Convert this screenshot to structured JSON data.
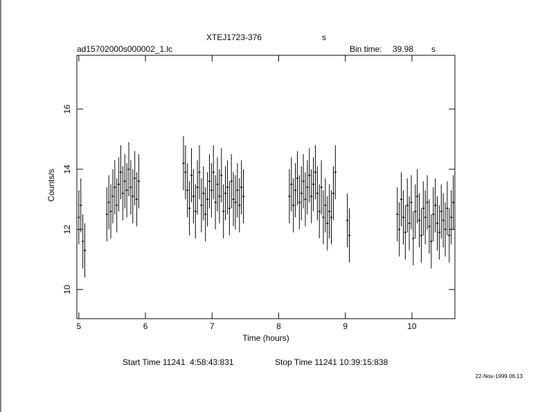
{
  "chart_data": {
    "type": "errorbar",
    "title": "XTEJ1723-376",
    "title_unit": "s",
    "filename": "ad15702000s000002_1.lc",
    "bin_label": "Bin time:",
    "bin_value": "39.98",
    "bin_unit": "s",
    "xlabel": "Time (hours)",
    "ylabel": "Counts/s",
    "start_label": "Start Time 11241  4:58:43:831",
    "stop_label": "Stop Time 11241 10:39:15:838",
    "timestamp": "22-Nov-1999 06:13",
    "xlim": [
      4.97,
      10.645
    ],
    "ylim": [
      9.03,
      17.79
    ],
    "xticks": [
      5,
      6,
      7,
      8,
      9,
      10
    ],
    "yticks": [
      10,
      12,
      14,
      16
    ],
    "color": "#000000",
    "error": 0.9,
    "x": [
      5.0,
      5.03,
      5.06,
      5.09,
      5.42,
      5.45,
      5.48,
      5.51,
      5.54,
      5.57,
      5.6,
      5.63,
      5.66,
      5.69,
      5.72,
      5.75,
      5.78,
      5.81,
      5.84,
      5.87,
      5.9,
      6.57,
      6.6,
      6.63,
      6.66,
      6.69,
      6.72,
      6.75,
      6.78,
      6.81,
      6.84,
      6.87,
      6.9,
      6.93,
      6.96,
      6.99,
      7.02,
      7.05,
      7.08,
      7.11,
      7.14,
      7.17,
      7.2,
      7.23,
      7.26,
      7.29,
      7.32,
      7.35,
      7.38,
      7.41,
      7.44,
      7.47,
      8.16,
      8.19,
      8.22,
      8.25,
      8.28,
      8.31,
      8.34,
      8.37,
      8.4,
      8.43,
      8.46,
      8.49,
      8.52,
      8.55,
      8.58,
      8.61,
      8.64,
      8.67,
      8.7,
      8.73,
      8.76,
      8.79,
      8.82,
      8.85,
      9.03,
      9.06,
      9.78,
      9.81,
      9.84,
      9.87,
      9.9,
      9.93,
      9.96,
      9.99,
      10.02,
      10.05,
      10.08,
      10.11,
      10.14,
      10.17,
      10.2,
      10.23,
      10.26,
      10.29,
      10.32,
      10.35,
      10.38,
      10.41,
      10.44,
      10.47,
      10.5,
      10.53,
      10.56,
      10.59,
      10.62
    ],
    "values": [
      12.4,
      12.8,
      11.6,
      11.3,
      12.5,
      12.9,
      12.6,
      13.1,
      13.4,
      12.8,
      13.5,
      13.9,
      13.2,
      13.6,
      13.3,
      14.0,
      13.4,
      13.1,
      13.7,
      13.0,
      13.6,
      14.2,
      13.9,
      13.3,
      12.7,
      13.8,
      13.1,
      12.6,
      13.4,
      13.9,
      12.8,
      13.2,
      12.5,
      13.0,
      13.6,
      13.3,
      13.9,
      12.9,
      13.5,
      13.1,
      13.8,
      12.6,
      13.2,
      13.4,
      12.7,
      13.6,
      13.0,
      12.9,
      13.3,
      12.8,
      13.4,
      13.1,
      13.1,
      13.5,
      12.8,
      13.3,
      13.7,
      12.9,
      13.2,
      13.6,
      13.0,
      13.4,
      13.8,
      13.1,
      13.5,
      13.9,
      13.2,
      12.6,
      13.4,
      12.4,
      12.8,
      12.2,
      12.6,
      12.4,
      13.2,
      13.9,
      12.3,
      11.8,
      12.5,
      12.0,
      13.0,
      12.4,
      11.9,
      12.8,
      12.2,
      12.9,
      11.7,
      12.6,
      13.1,
      12.3,
      11.8,
      12.7,
      12.4,
      12.9,
      12.1,
      11.6,
      12.5,
      12.8,
      12.2,
      11.9,
      12.6,
      12.3,
      12.0,
      12.7,
      11.8,
      12.4,
      12.9
    ]
  }
}
